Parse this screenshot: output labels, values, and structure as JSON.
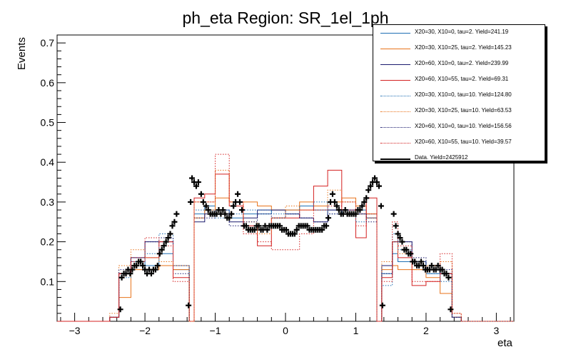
{
  "chart_data": {
    "type": "line",
    "title": "ph_eta Region: SR_1el_1ph",
    "xlabel": "eta",
    "ylabel": "Events",
    "xlim": [
      -3.25,
      3.25
    ],
    "ylim": [
      0,
      0.72
    ],
    "xticks": [
      -3,
      -2,
      -1,
      0,
      1,
      2,
      3
    ],
    "yticks": [
      0.1,
      0.2,
      0.3,
      0.4,
      0.5,
      0.6,
      0.7
    ],
    "bin_edges": [
      -2.5,
      -2.37,
      -2.2,
      -2.0,
      -1.8,
      -1.6,
      -1.52,
      -1.37,
      -1.3,
      -1.15,
      -1.0,
      -0.8,
      -0.6,
      -0.4,
      -0.2,
      0,
      0.2,
      0.4,
      0.6,
      0.8,
      1.0,
      1.15,
      1.3,
      1.37,
      1.52,
      1.6,
      1.8,
      2.0,
      2.2,
      2.37,
      2.5
    ],
    "series": [
      {
        "name": "X20=30, X10=0, tau=2. Yield=241.19",
        "color": "#1f6fb4",
        "dash": "solid",
        "values": [
          0.01,
          0.12,
          0.15,
          0.14,
          0.17,
          0.13,
          0.13,
          0.0,
          0.27,
          0.29,
          0.28,
          0.26,
          0.27,
          0.27,
          0.28,
          0.28,
          0.29,
          0.28,
          0.28,
          0.27,
          0.28,
          0.27,
          0.0,
          0.12,
          0.17,
          0.15,
          0.15,
          0.12,
          0.12,
          0.01
        ]
      },
      {
        "name": "X20=30, X10=25, tau=2. Yield=145.23",
        "color": "#e8731a",
        "dash": "solid",
        "values": [
          0.01,
          0.06,
          0.13,
          0.13,
          0.14,
          0.13,
          0.13,
          0.0,
          0.26,
          0.28,
          0.31,
          0.3,
          0.3,
          0.29,
          0.28,
          0.28,
          0.3,
          0.29,
          0.3,
          0.31,
          0.29,
          0.27,
          0.0,
          0.13,
          0.14,
          0.13,
          0.13,
          0.11,
          0.07,
          0.01
        ]
      },
      {
        "name": "X20=60, X10=0, tau=2. Yield=239.99",
        "color": "#1a1a6e",
        "dash": "solid",
        "values": [
          0.01,
          0.12,
          0.16,
          0.2,
          0.2,
          0.14,
          0.14,
          0.0,
          0.25,
          0.27,
          0.27,
          0.25,
          0.26,
          0.28,
          0.28,
          0.27,
          0.26,
          0.25,
          0.28,
          0.28,
          0.27,
          0.26,
          0.0,
          0.14,
          0.2,
          0.2,
          0.15,
          0.13,
          0.12,
          0.01
        ]
      },
      {
        "name": "X20=60, X10=55, tau=2. Yield=69.31",
        "color": "#d42020",
        "dash": "solid",
        "values": [
          0.01,
          0.12,
          0.15,
          0.16,
          0.2,
          0.11,
          0.11,
          0.0,
          0.31,
          0.32,
          0.37,
          0.29,
          0.24,
          0.19,
          0.26,
          0.26,
          0.28,
          0.34,
          0.38,
          0.28,
          0.21,
          0.31,
          0.0,
          0.11,
          0.2,
          0.16,
          0.09,
          0.1,
          0.12,
          0.01
        ]
      },
      {
        "name": "X20=30, X10=0, tau=10. Yield=124.80",
        "color": "#1f6fb4",
        "dash": "dotted",
        "values": [
          0.01,
          0.11,
          0.15,
          0.17,
          0.22,
          0.14,
          0.14,
          0.0,
          0.28,
          0.28,
          0.26,
          0.27,
          0.28,
          0.28,
          0.27,
          0.27,
          0.29,
          0.3,
          0.27,
          0.28,
          0.25,
          0.26,
          0.0,
          0.09,
          0.22,
          0.18,
          0.15,
          0.12,
          0.1,
          0.01
        ]
      },
      {
        "name": "X20=30, X10=25, tau=10. Yield=63.53",
        "color": "#e8731a",
        "dash": "dotted",
        "values": [
          0.02,
          0.14,
          0.18,
          0.16,
          0.15,
          0.14,
          0.14,
          0.0,
          0.3,
          0.3,
          0.38,
          0.3,
          0.25,
          0.22,
          0.26,
          0.29,
          0.28,
          0.28,
          0.33,
          0.3,
          0.27,
          0.26,
          0.0,
          0.15,
          0.2,
          0.17,
          0.13,
          0.14,
          0.15,
          0.02
        ]
      },
      {
        "name": "X20=60, X10=0, tau=10. Yield=156.56",
        "color": "#1a1a6e",
        "dash": "dotted",
        "values": [
          0.01,
          0.13,
          0.16,
          0.2,
          0.21,
          0.12,
          0.12,
          0.0,
          0.26,
          0.26,
          0.28,
          0.24,
          0.25,
          0.27,
          0.26,
          0.27,
          0.26,
          0.25,
          0.27,
          0.28,
          0.27,
          0.25,
          0.0,
          0.12,
          0.2,
          0.2,
          0.16,
          0.13,
          0.13,
          0.01
        ]
      },
      {
        "name": "X20=60, X10=55, tau=10. Yield=39.57",
        "color": "#d42020",
        "dash": "dotted",
        "values": [
          0.01,
          0.12,
          0.16,
          0.21,
          0.19,
          0.1,
          0.1,
          0.0,
          0.3,
          0.3,
          0.42,
          0.3,
          0.22,
          0.2,
          0.18,
          0.18,
          0.22,
          0.28,
          0.29,
          0.3,
          0.24,
          0.27,
          0.0,
          0.1,
          0.25,
          0.19,
          0.1,
          0.1,
          0.17,
          0.02
        ]
      }
    ],
    "data_series": {
      "name": "Data. Yield=2425912",
      "color": "#000000",
      "points": [
        [
          -2.35,
          0.03
        ],
        [
          -2.33,
          0.11
        ],
        [
          -2.3,
          0.12
        ],
        [
          -2.27,
          0.12
        ],
        [
          -2.24,
          0.13
        ],
        [
          -2.21,
          0.12
        ],
        [
          -2.18,
          0.13
        ],
        [
          -2.15,
          0.14
        ],
        [
          -2.12,
          0.14
        ],
        [
          -2.09,
          0.15
        ],
        [
          -2.06,
          0.15
        ],
        [
          -2.03,
          0.14
        ],
        [
          -2.0,
          0.13
        ],
        [
          -1.97,
          0.12
        ],
        [
          -1.94,
          0.13
        ],
        [
          -1.91,
          0.12
        ],
        [
          -1.88,
          0.13
        ],
        [
          -1.85,
          0.13
        ],
        [
          -1.82,
          0.14
        ],
        [
          -1.79,
          0.17
        ],
        [
          -1.76,
          0.18
        ],
        [
          -1.73,
          0.19
        ],
        [
          -1.7,
          0.2
        ],
        [
          -1.67,
          0.21
        ],
        [
          -1.64,
          0.22
        ],
        [
          -1.61,
          0.24
        ],
        [
          -1.58,
          0.25
        ],
        [
          -1.55,
          0.27
        ],
        [
          -1.38,
          0.04
        ],
        [
          -1.35,
          0.3
        ],
        [
          -1.33,
          0.36
        ],
        [
          -1.3,
          0.35
        ],
        [
          -1.27,
          0.34
        ],
        [
          -1.24,
          0.35
        ],
        [
          -1.2,
          0.32
        ],
        [
          -1.17,
          0.3
        ],
        [
          -1.13,
          0.29
        ],
        [
          -1.1,
          0.28
        ],
        [
          -1.07,
          0.27
        ],
        [
          -1.04,
          0.27
        ],
        [
          -1.01,
          0.27
        ],
        [
          -0.98,
          0.27
        ],
        [
          -0.95,
          0.28
        ],
        [
          -0.92,
          0.27
        ],
        [
          -0.89,
          0.28
        ],
        [
          -0.86,
          0.27
        ],
        [
          -0.83,
          0.26
        ],
        [
          -0.8,
          0.26
        ],
        [
          -0.77,
          0.27
        ],
        [
          -0.74,
          0.29
        ],
        [
          -0.71,
          0.3
        ],
        [
          -0.68,
          0.32
        ],
        [
          -0.65,
          0.3
        ],
        [
          -0.62,
          0.28
        ],
        [
          -0.59,
          0.24
        ],
        [
          -0.56,
          0.24
        ],
        [
          -0.53,
          0.23
        ],
        [
          -0.5,
          0.23
        ],
        [
          -0.47,
          0.23
        ],
        [
          -0.44,
          0.23
        ],
        [
          -0.41,
          0.24
        ],
        [
          -0.38,
          0.24
        ],
        [
          -0.35,
          0.23
        ],
        [
          -0.32,
          0.23
        ],
        [
          -0.29,
          0.24
        ],
        [
          -0.26,
          0.23
        ],
        [
          -0.23,
          0.24
        ],
        [
          -0.2,
          0.24
        ],
        [
          -0.17,
          0.24
        ],
        [
          -0.14,
          0.24
        ],
        [
          -0.11,
          0.24
        ],
        [
          -0.08,
          0.24
        ],
        [
          -0.05,
          0.23
        ],
        [
          -0.02,
          0.23
        ],
        [
          0.01,
          0.23
        ],
        [
          0.04,
          0.22
        ],
        [
          0.07,
          0.22
        ],
        [
          0.1,
          0.22
        ],
        [
          0.13,
          0.22
        ],
        [
          0.16,
          0.23
        ],
        [
          0.19,
          0.24
        ],
        [
          0.22,
          0.24
        ],
        [
          0.25,
          0.24
        ],
        [
          0.28,
          0.24
        ],
        [
          0.31,
          0.24
        ],
        [
          0.34,
          0.23
        ],
        [
          0.37,
          0.23
        ],
        [
          0.4,
          0.23
        ],
        [
          0.43,
          0.23
        ],
        [
          0.46,
          0.23
        ],
        [
          0.49,
          0.23
        ],
        [
          0.52,
          0.23
        ],
        [
          0.55,
          0.24
        ],
        [
          0.58,
          0.24
        ],
        [
          0.61,
          0.26
        ],
        [
          0.64,
          0.3
        ],
        [
          0.67,
          0.32
        ],
        [
          0.7,
          0.3
        ],
        [
          0.73,
          0.29
        ],
        [
          0.76,
          0.28
        ],
        [
          0.79,
          0.27
        ],
        [
          0.82,
          0.27
        ],
        [
          0.85,
          0.28
        ],
        [
          0.88,
          0.27
        ],
        [
          0.91,
          0.27
        ],
        [
          0.94,
          0.27
        ],
        [
          0.97,
          0.27
        ],
        [
          1.0,
          0.27
        ],
        [
          1.03,
          0.28
        ],
        [
          1.06,
          0.28
        ],
        [
          1.09,
          0.29
        ],
        [
          1.12,
          0.3
        ],
        [
          1.15,
          0.31
        ],
        [
          1.18,
          0.33
        ],
        [
          1.21,
          0.34
        ],
        [
          1.24,
          0.35
        ],
        [
          1.27,
          0.36
        ],
        [
          1.3,
          0.35
        ],
        [
          1.33,
          0.34
        ],
        [
          1.38,
          0.04
        ],
        [
          1.36,
          0.29
        ],
        [
          1.54,
          0.27
        ],
        [
          1.57,
          0.24
        ],
        [
          1.6,
          0.22
        ],
        [
          1.63,
          0.21
        ],
        [
          1.66,
          0.2
        ],
        [
          1.69,
          0.18
        ],
        [
          1.72,
          0.18
        ],
        [
          1.75,
          0.17
        ],
        [
          1.78,
          0.17
        ],
        [
          1.81,
          0.15
        ],
        [
          1.84,
          0.15
        ],
        [
          1.87,
          0.14
        ],
        [
          1.9,
          0.14
        ],
        [
          1.93,
          0.15
        ],
        [
          1.96,
          0.14
        ],
        [
          1.99,
          0.13
        ],
        [
          2.02,
          0.13
        ],
        [
          2.05,
          0.13
        ],
        [
          2.08,
          0.14
        ],
        [
          2.11,
          0.13
        ],
        [
          2.14,
          0.13
        ],
        [
          2.17,
          0.14
        ],
        [
          2.2,
          0.13
        ],
        [
          2.23,
          0.13
        ],
        [
          2.26,
          0.12
        ],
        [
          2.29,
          0.12
        ],
        [
          2.32,
          0.11
        ],
        [
          2.35,
          0.03
        ]
      ]
    },
    "legend_position": "top-right"
  }
}
